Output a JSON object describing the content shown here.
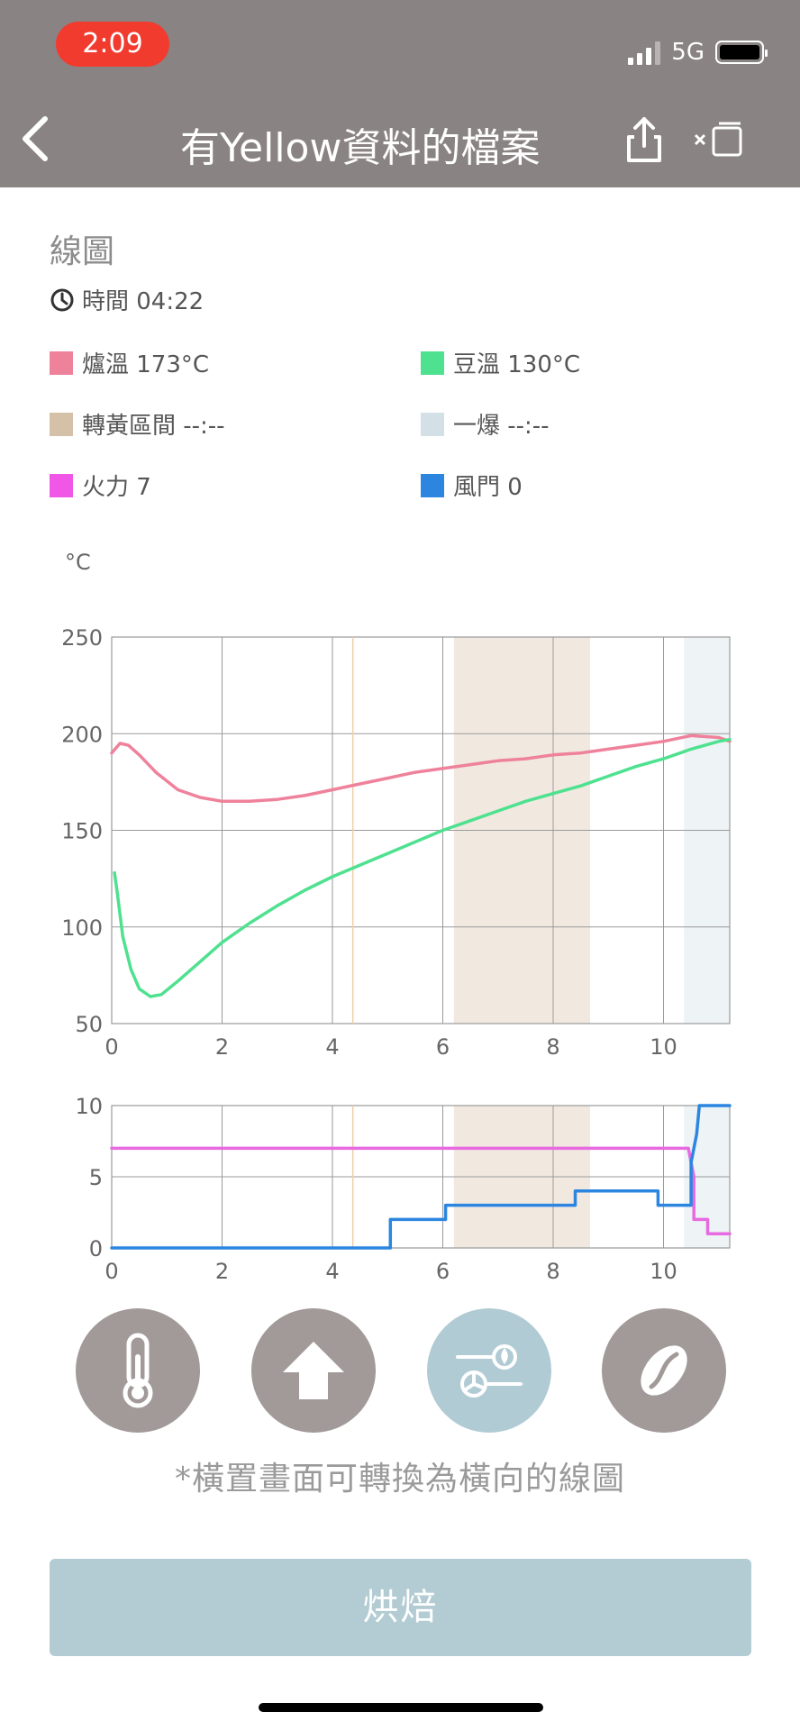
{
  "status": {
    "time": "2:09",
    "network": "5G"
  },
  "header": {
    "title": "有Yellow資料的檔案"
  },
  "section": {
    "title": "線圖"
  },
  "roast_time": {
    "label": "時間 04:22"
  },
  "legend": {
    "bt_env": "爐溫 173°C",
    "bean": "豆溫 130°C",
    "yellow": "轉黃區間 --:--",
    "first_crack": "一爆 --:--",
    "fire": "火力 7",
    "damper": "風門 0"
  },
  "colors": {
    "env": "#ef829b",
    "bean": "#4ee18f",
    "yellow_zone": "#d4c1a7",
    "crack_zone": "#d3e0e6",
    "fire": "#f157e6",
    "damper": "#2c86e0"
  },
  "charts": {
    "temp_unit": "°C",
    "temp_y_ticks": [
      "250",
      "200",
      "150",
      "100",
      "50"
    ],
    "x_ticks": [
      "0",
      "2",
      "4",
      "6",
      "8",
      "10"
    ],
    "ctrl_y_ticks": [
      "10",
      "5",
      "0"
    ]
  },
  "chart_data": [
    {
      "type": "line",
      "ylabel": "°C",
      "xlim": [
        0,
        11.2
      ],
      "ylim": [
        50,
        250
      ],
      "bands": [
        {
          "from": 6.2,
          "to": 8.67,
          "color": "#f1e9e0"
        },
        {
          "from": 10.37,
          "to": 11.2,
          "color": "#eef3f6"
        }
      ],
      "marker_x": 4.37,
      "series": [
        {
          "color": "#ef829b",
          "x": [
            0,
            0.15,
            0.3,
            0.5,
            0.8,
            1.2,
            1.6,
            2.0,
            2.5,
            3.0,
            3.5,
            4.0,
            4.5,
            5.0,
            5.5,
            6.0,
            6.5,
            7.0,
            7.5,
            8.0,
            8.5,
            9.0,
            9.5,
            10.0,
            10.5,
            11.0,
            11.2
          ],
          "y": [
            190,
            195,
            194,
            189,
            180,
            171,
            167,
            165,
            165,
            166,
            168,
            171,
            174,
            177,
            180,
            182,
            184,
            186,
            187,
            189,
            190,
            192,
            194,
            196,
            199,
            198,
            196
          ]
        },
        {
          "color": "#4ee18f",
          "x": [
            0.05,
            0.1,
            0.2,
            0.35,
            0.5,
            0.7,
            0.9,
            1.2,
            1.6,
            2.0,
            2.5,
            3.0,
            3.5,
            4.0,
            4.5,
            5.0,
            5.5,
            6.0,
            6.5,
            7.0,
            7.5,
            8.0,
            8.5,
            9.0,
            9.5,
            10.0,
            10.5,
            11.0,
            11.2
          ],
          "y": [
            128,
            118,
            95,
            78,
            68,
            64,
            65,
            72,
            82,
            92,
            102,
            111,
            119,
            126,
            132,
            138,
            144,
            150,
            155,
            160,
            165,
            169,
            173,
            178,
            183,
            187,
            192,
            196,
            197
          ]
        }
      ]
    },
    {
      "type": "line",
      "xlim": [
        0,
        11.2
      ],
      "ylim": [
        0,
        10
      ],
      "bands": [
        {
          "from": 6.2,
          "to": 8.67,
          "color": "#f1e9e0"
        },
        {
          "from": 10.37,
          "to": 11.2,
          "color": "#eef3f6"
        }
      ],
      "marker_x": 4.37,
      "series": [
        {
          "color": "#e86ae0",
          "step": true,
          "x": [
            0,
            10.45,
            10.45,
            10.55,
            10.55,
            10.8,
            10.8,
            11.2
          ],
          "y": [
            7,
            7,
            7,
            5,
            2,
            2,
            1,
            1
          ]
        },
        {
          "color": "#2c86e0",
          "step": true,
          "x": [
            0,
            5.05,
            5.05,
            6.05,
            6.05,
            8.4,
            8.4,
            9.9,
            9.9,
            10.5,
            10.5,
            10.6,
            10.65,
            11.2
          ],
          "y": [
            0,
            0,
            2,
            2,
            3,
            3,
            4,
            4,
            3,
            3,
            6,
            8,
            10,
            10
          ]
        }
      ]
    }
  ]
}
